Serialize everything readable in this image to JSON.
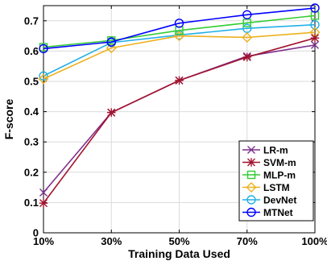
{
  "chart_data": {
    "type": "line",
    "title": "",
    "xlabel": "Training Data Used",
    "ylabel": "F-score",
    "categories": [
      "10%",
      "30%",
      "50%",
      "70%",
      "100%"
    ],
    "ylim": [
      0,
      0.75
    ],
    "yticks": [
      "0",
      "0.1",
      "0.2",
      "0.3",
      "0.4",
      "0.5",
      "0.6",
      "0.7"
    ],
    "ytick_values": [
      0,
      0.1,
      0.2,
      0.3,
      0.4,
      0.5,
      0.6,
      0.7
    ],
    "grid": true,
    "legend_position": "bottom-right",
    "series": [
      {
        "name": "LR-m",
        "color": "#7e2f8e",
        "marker": "x",
        "values": [
          0.133,
          0.397,
          0.503,
          0.583,
          0.62
        ]
      },
      {
        "name": "SVM-m",
        "color": "#a2142f",
        "marker": "asterisk",
        "values": [
          0.098,
          0.397,
          0.503,
          0.58,
          0.643
        ]
      },
      {
        "name": "MLP-m",
        "color": "#33cc33",
        "marker": "square",
        "values": [
          0.613,
          0.635,
          0.668,
          0.693,
          0.717
        ]
      },
      {
        "name": "LSTM",
        "color": "#edb120",
        "marker": "diamond",
        "values": [
          0.508,
          0.61,
          0.65,
          0.645,
          0.662
        ]
      },
      {
        "name": "DevNet",
        "color": "#22b0e6",
        "marker": "circle",
        "values": [
          0.518,
          0.628,
          0.653,
          0.675,
          0.687
        ]
      },
      {
        "name": "MTNet",
        "color": "#0000ff",
        "marker": "circle",
        "values": [
          0.608,
          0.63,
          0.692,
          0.72,
          0.742
        ]
      }
    ]
  }
}
